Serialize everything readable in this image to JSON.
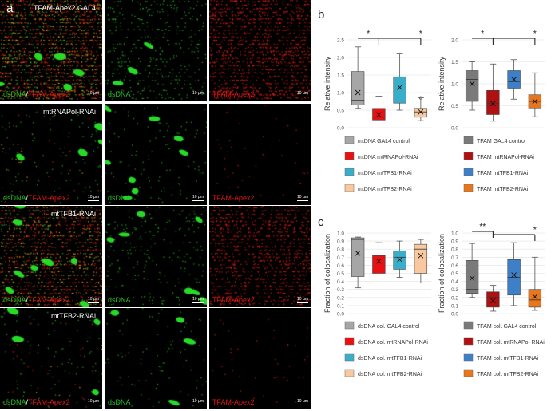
{
  "panel_a": {
    "letter": "a",
    "rows": [
      {
        "title": "TFAM-Apex2 GAL4",
        "merge_dna": "dsDNA",
        "merge_sep": "/",
        "merge_tfam": "TFAM-Apex2",
        "dna": "dsDNA",
        "tfam": "TFAM-Apex2",
        "scale": "10 µm"
      },
      {
        "title": "mtRNAPol-RNAi",
        "merge_dna": "dsDNA",
        "merge_sep": "/",
        "merge_tfam": "TFAM-Apex2",
        "dna": "dsDNA",
        "tfam": "TFAM-Apex2",
        "scale": "10 µm"
      },
      {
        "title": "mtTFB1-RNAi",
        "merge_dna": "dsDNA",
        "merge_sep": "/",
        "merge_tfam": "TFAM-Apex2",
        "dna": "dsDNA",
        "tfam": "TFAM-Apex2",
        "scale": "10 µm"
      },
      {
        "title": "mtTFB2-RNAi",
        "merge_dna": "dsDNA",
        "merge_sep": "/",
        "merge_tfam": "TFAM-Apex2",
        "dna": "dsDNA",
        "tfam": "TFAM-Apex2",
        "scale": "10 µm"
      }
    ],
    "red_density": [
      0.9,
      0.03,
      0.75,
      0.03
    ],
    "dna_density": [
      0.45,
      0.12,
      0.25,
      0.1
    ]
  },
  "panel_b_letter": "b",
  "panel_c_letter": "c",
  "colors": {
    "gray": "#a6a6a6",
    "red": "#e81010",
    "teal": "#3aaec8",
    "peach": "#f8c8a0",
    "darkgray": "#7a7a7a",
    "darkred": "#b01010",
    "blue": "#3e80c8",
    "orange": "#e8761c"
  },
  "chart_data": [
    {
      "type": "box",
      "ylabel": "Relative intensity",
      "ylim": [
        0,
        2.5
      ],
      "yticks": [
        "0.0",
        "0.5",
        "1.0",
        "1.5",
        "2.0",
        "2.5"
      ],
      "grid": true,
      "series": [
        {
          "name": "mtDNA  GAL4 control",
          "color": "gray",
          "min": 0.55,
          "q1": 0.65,
          "median": 0.78,
          "q3": 1.6,
          "max": 2.3,
          "mean": 1.0
        },
        {
          "name": "mtDNA  mtRNAPol-RNAi",
          "color": "red",
          "min": 0.1,
          "q1": 0.22,
          "median": 0.3,
          "q3": 0.55,
          "max": 0.9,
          "mean": 0.37
        },
        {
          "name": "mtDNA  mtTFB1-RNAi",
          "color": "teal",
          "min": 0.5,
          "q1": 0.7,
          "median": 1.1,
          "q3": 1.45,
          "max": 2.1,
          "mean": 1.15
        },
        {
          "name": "mtDNA  mtTFB2-RNAi",
          "color": "peach",
          "min": 0.2,
          "q1": 0.3,
          "median": 0.45,
          "q3": 0.55,
          "max": 0.85,
          "mean": 0.45,
          "outliers": [
            0.85
          ]
        }
      ],
      "significance": [
        {
          "from": 0,
          "to": 1,
          "label": "*"
        },
        {
          "from": 0,
          "to": 3,
          "label": "*"
        }
      ]
    },
    {
      "type": "box",
      "ylabel": "Relative intensity",
      "ylim": [
        0,
        2.0
      ],
      "yticks": [
        "0.0",
        "0.5",
        "1.0",
        "1.5",
        "2.0"
      ],
      "grid": true,
      "series": [
        {
          "name": "TFAM   GAL4 control",
          "color": "darkgray",
          "min": 0.4,
          "q1": 0.6,
          "median": 1.1,
          "q3": 1.3,
          "max": 1.5,
          "mean": 1.0
        },
        {
          "name": "TFAM   mtRNAPol-RNAi",
          "color": "darkred",
          "min": 0.15,
          "q1": 0.3,
          "median": 0.55,
          "q3": 0.85,
          "max": 1.45,
          "mean": 0.55
        },
        {
          "name": "TFAM   mtTFB1-RNAi",
          "color": "blue",
          "min": 0.65,
          "q1": 0.9,
          "median": 1.05,
          "q3": 1.3,
          "max": 1.55,
          "mean": 1.1
        },
        {
          "name": "TFAM   mtTFB2-RNAi",
          "color": "orange",
          "min": 0.25,
          "q1": 0.45,
          "median": 0.6,
          "q3": 0.75,
          "max": 1.25,
          "mean": 0.6
        }
      ],
      "significance": [
        {
          "from": 0,
          "to": 1,
          "label": "*"
        },
        {
          "from": 0,
          "to": 3,
          "label": "*"
        }
      ]
    },
    {
      "type": "box",
      "ylabel": "Fraction of colocalization",
      "ylim": [
        0,
        1.0
      ],
      "yticks": [
        "0.0",
        "0.1",
        "0.2",
        "0.3",
        "0.4",
        "0.5",
        "0.6",
        "0.7",
        "0.8",
        "0.9",
        "1.0"
      ],
      "grid": true,
      "series": [
        {
          "name": "dsDNA col.  GAL4 control",
          "color": "gray",
          "min": 0.32,
          "q1": 0.46,
          "median": 0.92,
          "q3": 0.94,
          "max": 0.95,
          "mean": 0.75
        },
        {
          "name": "dsDNA col.  mtRNAPol-RNAi",
          "color": "red",
          "min": 0.48,
          "q1": 0.5,
          "median": 0.68,
          "q3": 0.72,
          "max": 0.88,
          "mean": 0.65
        },
        {
          "name": "dsDNA col.  mtTFB1-RNAi",
          "color": "teal",
          "min": 0.45,
          "q1": 0.55,
          "median": 0.7,
          "q3": 0.78,
          "max": 0.9,
          "mean": 0.67
        },
        {
          "name": "dsDNA col.  mtTFB2-RNAi",
          "color": "peach",
          "min": 0.38,
          "q1": 0.5,
          "median": 0.8,
          "q3": 0.86,
          "max": 0.92,
          "mean": 0.72
        }
      ]
    },
    {
      "type": "box",
      "ylabel": "Fraction of colocalization",
      "ylim": [
        0,
        1.0
      ],
      "yticks": [
        "0.0",
        "0.1",
        "0.2",
        "0.3",
        "0.4",
        "0.5",
        "0.6",
        "0.7",
        "0.8",
        "0.9",
        "1.0"
      ],
      "grid": true,
      "series": [
        {
          "name": "TFAM col.  GAL4 control",
          "color": "darkgray",
          "min": 0.2,
          "q1": 0.25,
          "median": 0.3,
          "q3": 0.66,
          "max": 0.87,
          "mean": 0.44
        },
        {
          "name": "TFAM col.  mtRNAPol-RNAi",
          "color": "darkred",
          "min": 0.03,
          "q1": 0.08,
          "median": 0.2,
          "q3": 0.27,
          "max": 0.35,
          "mean": 0.16
        },
        {
          "name": "TFAM col.  mtTFB1-RNAi",
          "color": "blue",
          "min": 0.1,
          "q1": 0.23,
          "median": 0.45,
          "q3": 0.67,
          "max": 0.88,
          "mean": 0.48
        },
        {
          "name": "TFAM col.  mtTFB2-RNAi",
          "color": "orange",
          "min": 0.04,
          "q1": 0.08,
          "median": 0.17,
          "q3": 0.3,
          "max": 0.7,
          "mean": 0.21
        }
      ],
      "significance": [
        {
          "from": 0,
          "to": 1,
          "label": "**"
        },
        {
          "from": 1,
          "to": 3,
          "label": "*"
        }
      ]
    }
  ]
}
